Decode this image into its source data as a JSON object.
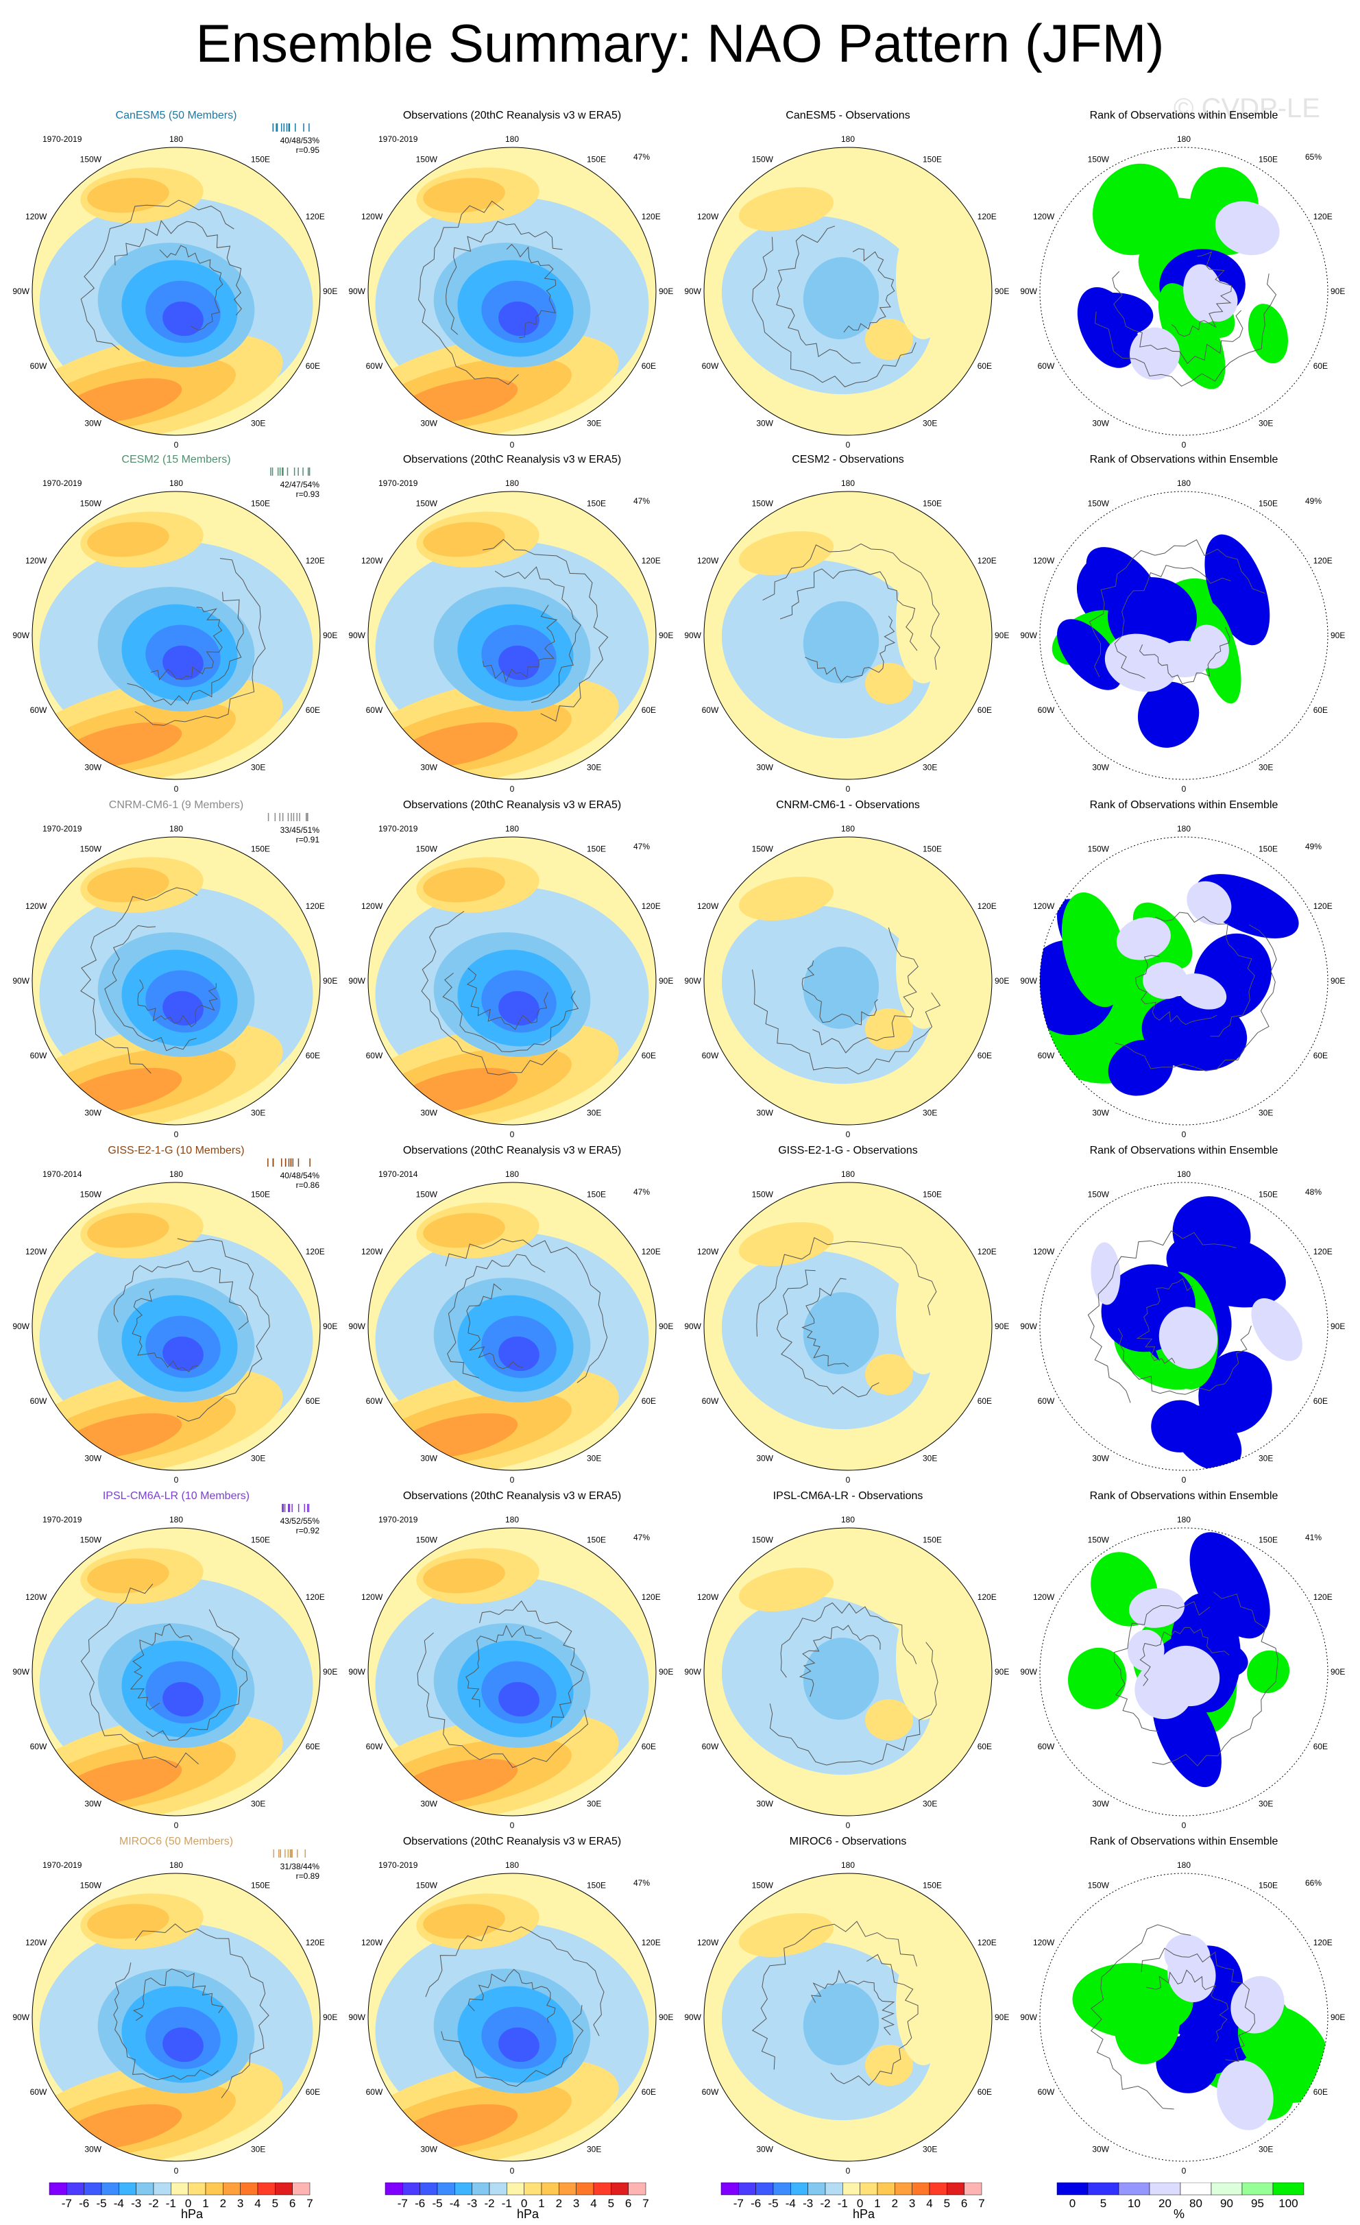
{
  "title": "Ensemble Summary: NAO Pattern (JFM)",
  "watermark": "© CVDP-LE",
  "colors": {
    "neg": [
      "#7f00ff",
      "#4b3cff",
      "#3c5aff",
      "#3c8cff",
      "#3cb4ff",
      "#82c8f0",
      "#b4dcf5"
    ],
    "pos": [
      "#fff5aa",
      "#ffe178",
      "#ffc850",
      "#ffa03c",
      "#ff7828",
      "#ff3c28",
      "#e11e1e",
      "#ffb4b4"
    ],
    "rank": [
      "#0000e6",
      "#3232ff",
      "#9696ff",
      "#dcdcff",
      "#ffffff",
      "#dcffdc",
      "#96ff96",
      "#00f000"
    ]
  },
  "rows": [
    {
      "model": "CanESM5 (50 Members)",
      "model_color": "#1f77a0",
      "period": "1970-2019",
      "stats": "40/48/53%",
      "r": "r=0.95",
      "obs_pct": "47%",
      "rank_pct": "65%",
      "diff_title": "CanESM5 - Observations"
    },
    {
      "model": "CESM2 (15 Members)",
      "model_color": "#4f8f6f",
      "period": "1970-2019",
      "stats": "42/47/54%",
      "r": "r=0.93",
      "obs_pct": "47%",
      "rank_pct": "49%",
      "diff_title": "CESM2 - Observations"
    },
    {
      "model": "CNRM-CM6-1 (9 Members)",
      "model_color": "#8a8a8a",
      "period": "1970-2019",
      "stats": "33/45/51%",
      "r": "r=0.91",
      "obs_pct": "47%",
      "rank_pct": "49%",
      "diff_title": "CNRM-CM6-1 - Observations"
    },
    {
      "model": "GISS-E2-1-G (10 Members)",
      "model_color": "#8b4513",
      "period": "1970-2014",
      "stats": "40/48/54%",
      "r": "r=0.86",
      "obs_pct": "47%",
      "rank_pct": "48%",
      "diff_title": "GISS-E2-1-G - Observations"
    },
    {
      "model": "IPSL-CM6A-LR (10 Members)",
      "model_color": "#7b3fd0",
      "period": "1970-2019",
      "stats": "43/52/55%",
      "r": "r=0.92",
      "obs_pct": "47%",
      "rank_pct": "41%",
      "diff_title": "IPSL-CM6A-LR - Observations"
    },
    {
      "model": "MIROC6 (50 Members)",
      "model_color": "#d2a060",
      "period": "1970-2019",
      "stats": "31/38/44%",
      "r": "r=0.89",
      "obs_pct": "47%",
      "rank_pct": "66%",
      "diff_title": "MIROC6 - Observations"
    }
  ],
  "obs_title": "Observations (20thC Reanalysis v3 w ERA5)",
  "rank_title": "Rank of Observations within Ensemble",
  "map_labels": {
    "top": "180",
    "bottom": "0",
    "left": "90W",
    "right": "90E",
    "ul1": "150W",
    "ur1": "150E",
    "ul2": "120W",
    "ur2": "120E",
    "ll1": "60W",
    "lr1": "60E",
    "ll2": "30W",
    "lr2": "30E"
  },
  "colorbars": {
    "hpa_ticks": [
      "-7",
      "-6",
      "-5",
      "-4",
      "-3",
      "-2",
      "-1",
      "0",
      "1",
      "2",
      "3",
      "4",
      "5",
      "6",
      "7"
    ],
    "hpa_units": "hPa",
    "rank_ticks": [
      "0",
      "5",
      "10",
      "20",
      "80",
      "90",
      "95",
      "100"
    ],
    "rank_units": "%"
  },
  "chart_data": {
    "type": "heatmap",
    "title": "Ensemble Summary: NAO Pattern (JFM)",
    "description_units": "hPa",
    "hpa_contour_levels": [
      -7,
      -6,
      -5,
      -4,
      -3,
      -2,
      -1,
      0,
      1,
      2,
      3,
      4,
      5,
      6,
      7
    ],
    "rank_levels_percent": [
      0,
      5,
      10,
      20,
      80,
      90,
      95,
      100
    ],
    "panels": [
      {
        "row": "CanESM5",
        "pattern_corr": 0.95,
        "pct_var": [
          40,
          48,
          53
        ],
        "obs_pct_var": 47,
        "rank_pct": 65
      },
      {
        "row": "CESM2",
        "pattern_corr": 0.93,
        "pct_var": [
          42,
          47,
          54
        ],
        "obs_pct_var": 47,
        "rank_pct": 49
      },
      {
        "row": "CNRM-CM6-1",
        "pattern_corr": 0.91,
        "pct_var": [
          33,
          45,
          51
        ],
        "obs_pct_var": 47,
        "rank_pct": 49
      },
      {
        "row": "GISS-E2-1-G",
        "pattern_corr": 0.86,
        "pct_var": [
          40,
          48,
          54
        ],
        "obs_pct_var": 47,
        "rank_pct": 48
      },
      {
        "row": "IPSL-CM6A-LR",
        "pattern_corr": 0.92,
        "pct_var": [
          43,
          52,
          55
        ],
        "obs_pct_var": 47,
        "rank_pct": 41
      },
      {
        "row": "MIROC6",
        "pattern_corr": 0.89,
        "pct_var": [
          31,
          38,
          44
        ],
        "obs_pct_var": 47,
        "rank_pct": 66
      }
    ]
  }
}
